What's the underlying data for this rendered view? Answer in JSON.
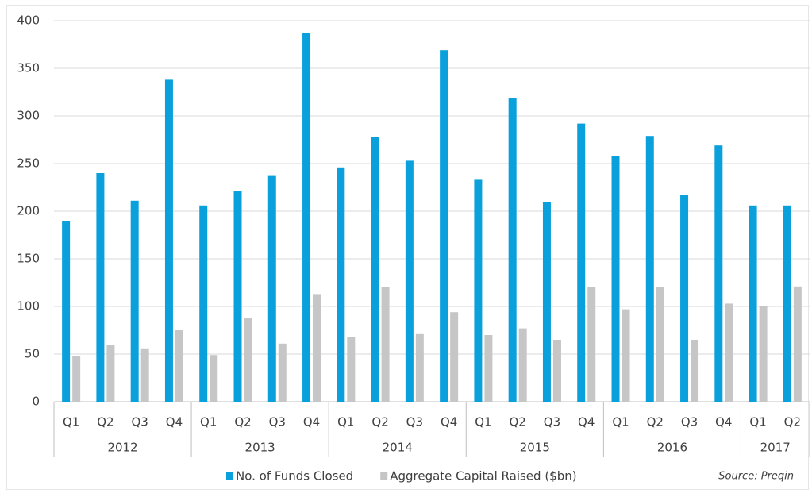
{
  "chart_data": {
    "type": "bar",
    "categories": [
      "Q1",
      "Q2",
      "Q3",
      "Q4",
      "Q1",
      "Q2",
      "Q3",
      "Q4",
      "Q1",
      "Q2",
      "Q3",
      "Q4",
      "Q1",
      "Q2",
      "Q3",
      "Q4",
      "Q1",
      "Q2",
      "Q3",
      "Q4",
      "Q1",
      "Q2"
    ],
    "groups": [
      {
        "label": "2012",
        "count": 4
      },
      {
        "label": "2013",
        "count": 4
      },
      {
        "label": "2014",
        "count": 4
      },
      {
        "label": "2015",
        "count": 4
      },
      {
        "label": "2016",
        "count": 4
      },
      {
        "label": "2017",
        "count": 2
      }
    ],
    "series": [
      {
        "name": "No. of Funds Closed",
        "color": "#0aa0dc",
        "values": [
          190,
          240,
          211,
          338,
          206,
          221,
          237,
          387,
          246,
          278,
          253,
          369,
          233,
          319,
          210,
          292,
          258,
          279,
          217,
          269,
          206,
          206
        ]
      },
      {
        "name": "Aggregate Capital Raised ($bn)",
        "color": "#c6c6c6",
        "values": [
          48,
          60,
          56,
          75,
          49,
          88,
          61,
          113,
          68,
          120,
          71,
          94,
          70,
          77,
          65,
          120,
          97,
          120,
          65,
          103,
          100,
          121
        ]
      }
    ],
    "ylim": [
      0,
      400
    ],
    "yticks": [
      0,
      50,
      100,
      150,
      200,
      250,
      300,
      350,
      400
    ],
    "grid": true,
    "legend": "bottom",
    "source": "Source: Preqin"
  }
}
